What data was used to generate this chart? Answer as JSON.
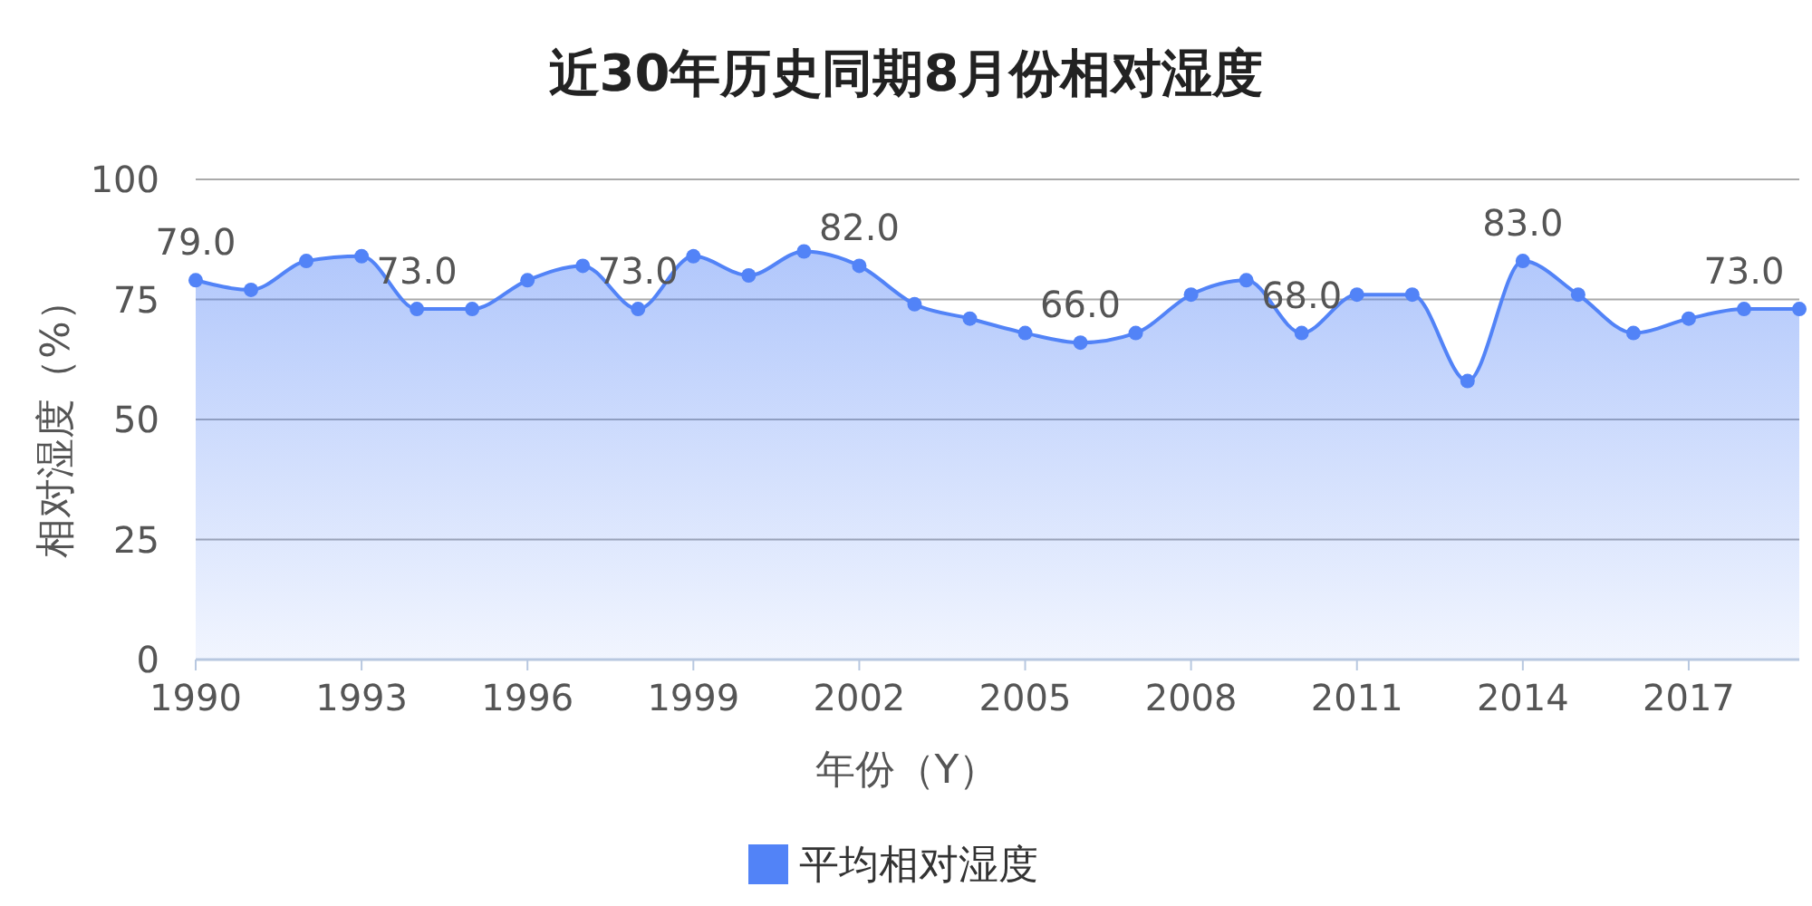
{
  "chart_data": {
    "type": "area",
    "title": "近30年历史同期8月份相对湿度",
    "xlabel": "年份（Y）",
    "ylabel": "相对湿度（%）",
    "x": [
      1990,
      1991,
      1992,
      1993,
      1994,
      1995,
      1996,
      1997,
      1998,
      1999,
      2000,
      2001,
      2002,
      2003,
      2004,
      2005,
      2006,
      2007,
      2008,
      2009,
      2010,
      2011,
      2012,
      2013,
      2014,
      2015,
      2016,
      2017,
      2018,
      2019
    ],
    "series": [
      {
        "name": "平均相对湿度",
        "color": "#5283f7",
        "values": [
          79,
          77,
          83,
          84,
          73,
          73,
          79,
          82,
          73,
          84,
          80,
          85,
          82,
          74,
          71,
          68,
          66,
          68,
          76,
          79,
          68,
          76,
          76,
          58,
          83,
          76,
          68,
          71,
          73,
          73
        ],
        "value_labels": [
          "79.0",
          null,
          null,
          null,
          "73.0",
          null,
          null,
          null,
          "73.0",
          null,
          null,
          null,
          "82.0",
          null,
          null,
          null,
          "66.0",
          null,
          null,
          null,
          "68.0",
          null,
          null,
          null,
          "83.0",
          null,
          null,
          null,
          "73.0",
          null
        ]
      }
    ],
    "xlim": [
      1990,
      2019
    ],
    "xticks": [
      1990,
      1993,
      1996,
      1999,
      2002,
      2005,
      2008,
      2011,
      2014,
      2017
    ],
    "ylim": [
      0,
      100
    ],
    "yticks": [
      0,
      25,
      50,
      75,
      100
    ],
    "grid": "y",
    "legend": "bottom",
    "marker": "circle",
    "line_style": "solid"
  }
}
